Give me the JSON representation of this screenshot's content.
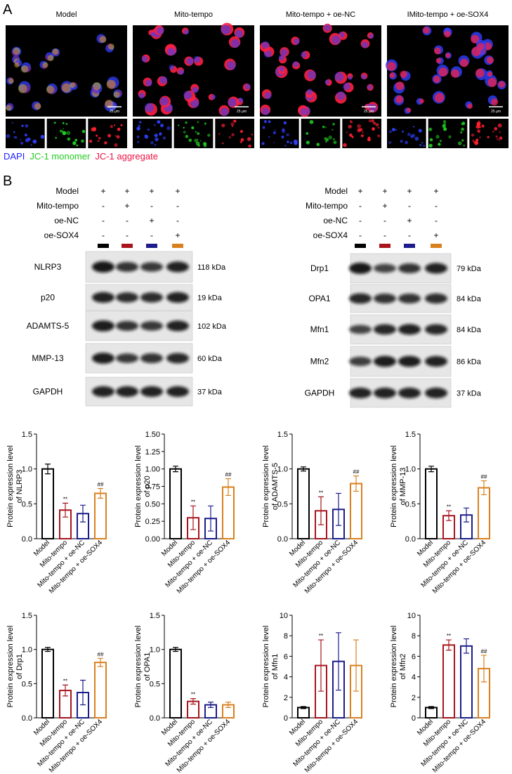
{
  "panel_a": {
    "label": "A",
    "titles": [
      "Model",
      "Mito-tempo",
      "Mito-tempo + oe-NC",
      "IMito-tempo + oe-SOX4"
    ],
    "scale_bar": "25 μm",
    "legend": [
      {
        "text": "DAPI",
        "color": "#2020ff"
      },
      {
        "text": "JC-1 monomer",
        "color": "#22cc22"
      },
      {
        "text": "JC-1 aggregate",
        "color": "#ee1144"
      }
    ]
  },
  "panel_b": {
    "label": "B",
    "lane_colors": [
      "#000000",
      "#a8141c",
      "#1c1c8c",
      "#d9801e"
    ],
    "blots": [
      {
        "conditions": [
          {
            "name": "Model",
            "signs": [
              "+",
              "+",
              "+",
              "+"
            ]
          },
          {
            "name": "Mito-tempo",
            "signs": [
              "-",
              "+",
              "-",
              "-"
            ]
          },
          {
            "name": "oe-NC",
            "signs": [
              "-",
              "-",
              "+",
              "-"
            ]
          },
          {
            "name": "oe-SOX4",
            "signs": [
              "-",
              "-",
              "-",
              "+"
            ]
          }
        ],
        "rows": [
          {
            "name": "NLRP3",
            "size": "118 kDa"
          },
          {
            "name": "p20",
            "size": "19 kDa"
          },
          {
            "name": "ADAMTS-5",
            "size": "102 kDa"
          },
          {
            "name": "MMP-13",
            "size": "60 kDa"
          },
          {
            "name": "GAPDH",
            "size": "37 kDa"
          }
        ]
      },
      {
        "conditions": [
          {
            "name": "Model",
            "signs": [
              "+",
              "+",
              "+",
              "+"
            ]
          },
          {
            "name": "Mito-tempo",
            "signs": [
              "-",
              "+",
              "-",
              "-"
            ]
          },
          {
            "name": "oe-NC",
            "signs": [
              "-",
              "-",
              "+",
              "-"
            ]
          },
          {
            "name": "oe-SOX4",
            "signs": [
              "-",
              "-",
              "-",
              "+"
            ]
          }
        ],
        "rows": [
          {
            "name": "Drp1",
            "size": "79 kDa"
          },
          {
            "name": "OPA1",
            "size": "84 kDa"
          },
          {
            "name": "Mfn1",
            "size": "84 kDa"
          },
          {
            "name": "Mfn2",
            "size": "86 kDa"
          },
          {
            "name": "GAPDH",
            "size": "37 kDa"
          }
        ]
      }
    ]
  },
  "chart_data": [
    {
      "type": "bar",
      "ylabel": [
        "Protein expression level",
        "of NLRP3"
      ],
      "categories": [
        "Model",
        "Mito-tempo",
        "Mito-tempo + oe-NC",
        "Mito-tempo + oe-SOX4"
      ],
      "values": [
        1.0,
        0.41,
        0.36,
        0.65
      ],
      "errors": [
        0.07,
        0.1,
        0.12,
        0.07
      ],
      "significance": [
        null,
        "**",
        null,
        "##"
      ],
      "colors": [
        "#000000",
        "#a8141c",
        "#1c1c8c",
        "#d9801e"
      ],
      "ylim": [
        0,
        1.5
      ],
      "yticks": [
        {
          "value": 0,
          "label": "0.0"
        },
        {
          "value": 0.5,
          "label": "0.5"
        },
        {
          "value": 1,
          "label": "1.0"
        },
        {
          "value": 1.5,
          "label": "1.5"
        }
      ]
    },
    {
      "type": "bar",
      "ylabel": [
        "Protein expression level",
        "of p20"
      ],
      "categories": [
        "Model",
        "Mito-tempo",
        "Mito-tempo + oe-NC",
        "Mito-tempo + oe-SOX4"
      ],
      "values": [
        1.0,
        0.3,
        0.29,
        0.74
      ],
      "errors": [
        0.04,
        0.17,
        0.18,
        0.12
      ],
      "significance": [
        null,
        "**",
        null,
        "##"
      ],
      "colors": [
        "#000000",
        "#a8141c",
        "#1c1c8c",
        "#d9801e"
      ],
      "ylim": [
        0,
        1.5
      ],
      "yticks": [
        {
          "value": 0,
          "label": "0.00"
        },
        {
          "value": 0.25,
          "label": "0.25"
        },
        {
          "value": 0.5,
          "label": "0.50"
        },
        {
          "value": 0.75,
          "label": "0.75"
        },
        {
          "value": 1,
          "label": "1.00"
        },
        {
          "value": 1.25,
          "label": "1.25"
        },
        {
          "value": 1.5,
          "label": "1.50"
        }
      ]
    },
    {
      "type": "bar",
      "ylabel": [
        "Protein expression level",
        "of ADAMTS-5"
      ],
      "categories": [
        "Model",
        "Mito-tempo",
        "Mito-tempo + oe-NC",
        "Mito-tempo + oe-SOX4"
      ],
      "values": [
        1.0,
        0.4,
        0.42,
        0.79
      ],
      "errors": [
        0.03,
        0.2,
        0.23,
        0.11
      ],
      "significance": [
        null,
        "**",
        null,
        "##"
      ],
      "colors": [
        "#000000",
        "#a8141c",
        "#1c1c8c",
        "#d9801e"
      ],
      "ylim": [
        0,
        1.5
      ],
      "yticks": [
        {
          "value": 0,
          "label": "0.0"
        },
        {
          "value": 0.5,
          "label": "0.5"
        },
        {
          "value": 1,
          "label": "1.0"
        },
        {
          "value": 1.5,
          "label": "1.5"
        }
      ]
    },
    {
      "type": "bar",
      "ylabel": [
        "Protein expression level",
        "of MMP-13"
      ],
      "categories": [
        "Model",
        "Mito-tempo",
        "Mito-tempo + oe-NC",
        "Mito-tempo + oe-SOX4"
      ],
      "values": [
        1.0,
        0.33,
        0.34,
        0.73
      ],
      "errors": [
        0.04,
        0.07,
        0.1,
        0.1
      ],
      "significance": [
        null,
        "**",
        null,
        "##"
      ],
      "colors": [
        "#000000",
        "#a8141c",
        "#1c1c8c",
        "#d9801e"
      ],
      "ylim": [
        0,
        1.5
      ],
      "yticks": [
        {
          "value": 0,
          "label": "0.0"
        },
        {
          "value": 0.5,
          "label": "0.5"
        },
        {
          "value": 1,
          "label": "1.0"
        },
        {
          "value": 1.5,
          "label": "1.5"
        }
      ]
    },
    {
      "type": "bar",
      "ylabel": [
        "Protein expression level",
        "of Drp1"
      ],
      "categories": [
        "Model",
        "Mito-tempo",
        "Mito-tempo + oe-NC",
        "Mito-tempo + oe-SOX4"
      ],
      "values": [
        1.0,
        0.4,
        0.37,
        0.81
      ],
      "errors": [
        0.03,
        0.08,
        0.18,
        0.06
      ],
      "significance": [
        null,
        "**",
        null,
        "##"
      ],
      "colors": [
        "#000000",
        "#a8141c",
        "#1c1c8c",
        "#d9801e"
      ],
      "ylim": [
        0,
        1.5
      ],
      "yticks": [
        {
          "value": 0,
          "label": "0.0"
        },
        {
          "value": 0.5,
          "label": "0.5"
        },
        {
          "value": 1,
          "label": "1.0"
        },
        {
          "value": 1.5,
          "label": "1.5"
        }
      ]
    },
    {
      "type": "bar",
      "ylabel": [
        "Protein expression level",
        "of OPA1"
      ],
      "categories": [
        "Model",
        "Mito-tempo",
        "Mito-tempo + oe-NC",
        "Mito-tempo + oe-SOX4"
      ],
      "values": [
        1.0,
        0.24,
        0.19,
        0.19
      ],
      "errors": [
        0.03,
        0.04,
        0.04,
        0.04
      ],
      "significance": [
        null,
        "**",
        null,
        null
      ],
      "colors": [
        "#000000",
        "#a8141c",
        "#1c1c8c",
        "#d9801e"
      ],
      "ylim": [
        0,
        1.5
      ],
      "yticks": [
        {
          "value": 0,
          "label": "0.0"
        },
        {
          "value": 0.5,
          "label": "0.5"
        },
        {
          "value": 1,
          "label": "1.0"
        },
        {
          "value": 1.5,
          "label": "1.5"
        }
      ]
    },
    {
      "type": "bar",
      "ylabel": [
        "Protein expression level",
        "of Mfn1"
      ],
      "categories": [
        "Model",
        "Mito-tempo",
        "Mito-tempo + oe-NC",
        "Mito-tempo + oe-SOX4"
      ],
      "values": [
        1.0,
        5.1,
        5.5,
        5.1
      ],
      "errors": [
        0.1,
        2.5,
        2.8,
        2.5
      ],
      "significance": [
        null,
        "**",
        null,
        null
      ],
      "colors": [
        "#000000",
        "#a8141c",
        "#1c1c8c",
        "#d9801e"
      ],
      "ylim": [
        0,
        10
      ],
      "yticks": [
        0,
        2,
        4,
        6,
        8,
        10
      ]
    },
    {
      "type": "bar",
      "ylabel": [
        "Protein expression level",
        "of Mfn2"
      ],
      "categories": [
        "Model",
        "Mito-tempo",
        "Mito-tempo + oe-NC",
        "Mito-tempo + oe-SOX4"
      ],
      "values": [
        1.0,
        7.1,
        7.0,
        4.8
      ],
      "errors": [
        0.1,
        0.5,
        0.7,
        1.3
      ],
      "significance": [
        null,
        "**",
        null,
        "##"
      ],
      "colors": [
        "#000000",
        "#a8141c",
        "#1c1c8c",
        "#d9801e"
      ],
      "ylim": [
        0,
        10
      ],
      "yticks": [
        0,
        2,
        4,
        6,
        8,
        10
      ]
    }
  ]
}
